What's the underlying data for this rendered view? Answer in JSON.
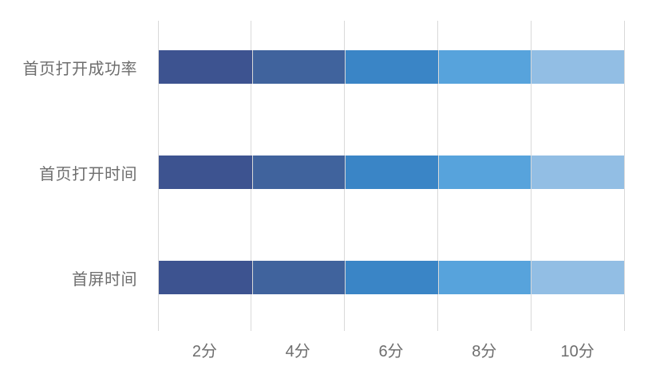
{
  "chart": {
    "background_color": "#ffffff",
    "text_color": "#6e6e6e",
    "gridline_color": "#d9d9d9"
  },
  "chart_data": {
    "type": "bar",
    "orientation": "horizontal",
    "stacked": true,
    "title": "",
    "xlabel": "",
    "ylabel": "",
    "categories": [
      "首页打开成功率",
      "首页打开时间",
      "首屏时间"
    ],
    "x_tick_labels": [
      "2分",
      "4分",
      "6分",
      "8分",
      "10分"
    ],
    "xlim": [
      0,
      10
    ],
    "gridline_positions": [
      0,
      2,
      4,
      6,
      8,
      10
    ],
    "grid": true,
    "legend": "none",
    "series": [
      {
        "name": "2分",
        "color": "#3d5390",
        "values": [
          2,
          2,
          2
        ]
      },
      {
        "name": "4分",
        "color": "#40639d",
        "values": [
          2,
          2,
          2
        ]
      },
      {
        "name": "6分",
        "color": "#3a85c6",
        "values": [
          2,
          2,
          2
        ]
      },
      {
        "name": "8分",
        "color": "#57a3dc",
        "values": [
          2,
          2,
          2
        ]
      },
      {
        "name": "10分",
        "color": "#92bee4",
        "values": [
          2,
          2,
          2
        ]
      }
    ]
  }
}
